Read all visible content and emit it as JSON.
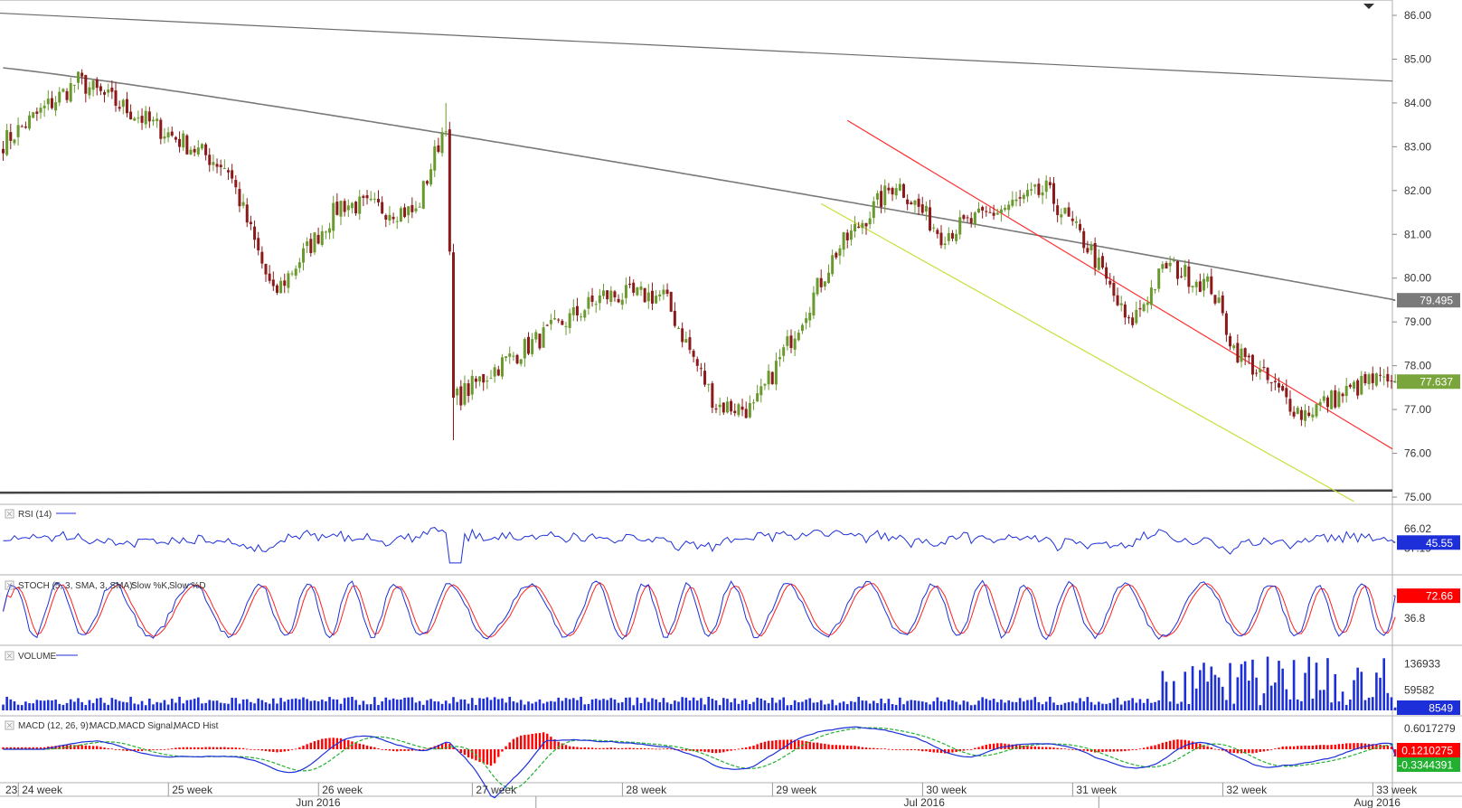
{
  "chart_data": {
    "type": "candlestick",
    "colors": {
      "up": "#6a9a2e",
      "down": "#8b1a1a",
      "ma": "#7a7a7a",
      "trendline": "#6a6a6a",
      "channel_upper": "#ff3030",
      "channel_lower": "#c5e03a",
      "rsi": "#1c2fd8",
      "stoch_k": "#1c2fd8",
      "stoch_d": "#ff2020",
      "volume": "#1c2fd8",
      "macd": "#1c2fd8",
      "macd_signal": "#22b030",
      "macd_hist": "#ff0000",
      "last_price_bg": "#7aa53d"
    },
    "price_axis": {
      "min": 75,
      "max": 86,
      "ticks": [
        "86.00",
        "85.00",
        "84.00",
        "83.00",
        "82.00",
        "81.00",
        "80.00",
        "79.00",
        "78.00",
        "77.00",
        "76.00",
        "75.00"
      ]
    },
    "ma_last": "79.495",
    "last_price": "77.637",
    "key_points": [
      {
        "t": 0,
        "v": 83.1
      },
      {
        "t": 20,
        "v": 84.5
      },
      {
        "t": 60,
        "v": 82.5
      },
      {
        "t": 72,
        "v": 79.6
      },
      {
        "t": 90,
        "v": 81.7
      },
      {
        "t": 110,
        "v": 81.5
      },
      {
        "t": 118,
        "v": 83.6
      },
      {
        "t": 120,
        "v": 77.2
      },
      {
        "t": 132,
        "v": 78.0
      },
      {
        "t": 160,
        "v": 79.6
      },
      {
        "t": 176,
        "v": 79.6
      },
      {
        "t": 190,
        "v": 77.1
      },
      {
        "t": 200,
        "v": 77.0
      },
      {
        "t": 222,
        "v": 80.6
      },
      {
        "t": 238,
        "v": 82.2
      },
      {
        "t": 250,
        "v": 81.0
      },
      {
        "t": 278,
        "v": 82.0
      },
      {
        "t": 290,
        "v": 80.6
      },
      {
        "t": 300,
        "v": 78.9
      },
      {
        "t": 310,
        "v": 80.3
      },
      {
        "t": 322,
        "v": 79.8
      },
      {
        "t": 328,
        "v": 78.4
      },
      {
        "t": 346,
        "v": 76.9
      },
      {
        "t": 364,
        "v": 77.64
      }
    ],
    "indicators": {
      "rsi": {
        "label": "RSI (14)",
        "ticks": [
          "66.02",
          "37.19"
        ],
        "last": "45.55"
      },
      "stoch": {
        "label": "STOCH (5, 3, SMA, 3, SMA):",
        "k_label": "Slow %K,",
        "d_label": "Slow %D",
        "ticks": [
          "36.8"
        ],
        "last": "72.66"
      },
      "volume": {
        "label": "VOLUME",
        "ticks": [
          "136933",
          "59582"
        ],
        "last": "8549"
      },
      "macd": {
        "label": "MACD (12, 26, 9):",
        "macd_label": "MACD,",
        "signal_label": "MACD Signal,",
        "hist_label": "MACD Hist",
        "ticks": [
          "0.6017279"
        ],
        "hist_last": "0.1210275",
        "last": "-0.3344391"
      }
    },
    "x_axis": {
      "weeks": [
        {
          "label": "23",
          "t": 0
        },
        {
          "label": "24 week",
          "t": 5
        },
        {
          "label": "25 week",
          "t": 45
        },
        {
          "label": "26 week",
          "t": 85
        },
        {
          "label": "27 week",
          "t": 126
        },
        {
          "label": "28 week",
          "t": 166
        },
        {
          "label": "29 week",
          "t": 206
        },
        {
          "label": "30 week",
          "t": 246
        },
        {
          "label": "31 week",
          "t": 286
        },
        {
          "label": "32 week",
          "t": 326
        },
        {
          "label": "33 week",
          "t": 366
        }
      ],
      "months": [
        {
          "label": "Jun 2016",
          "t": 78
        },
        {
          "label": "Jul 2016",
          "t": 240
        },
        {
          "label": "Aug 2016",
          "t": 360
        }
      ]
    }
  }
}
